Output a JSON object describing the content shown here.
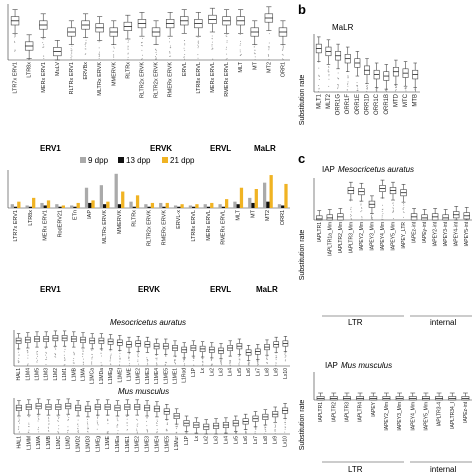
{
  "panels": {
    "b_letter": "b",
    "c_letter": "c",
    "b_title": "MaLR",
    "c_title_iap": "IAP",
    "c_species_top": "Mesocricetus auratus",
    "c_species_bottom": "Mus musculus",
    "c_title_iap2": "IAP",
    "a_species_top": "Mesocricetus auratus",
    "a_species_bottom": "Mus musculus",
    "ylabel_substitution": "Substitution rate"
  },
  "panel_a_top": {
    "group_labels": [
      "ERV1",
      "ERVK",
      "ERVL",
      "MaLR"
    ],
    "categories": [
      "LTR7x ERV1",
      "LTR8x",
      "MERx ERV1",
      "MuLV",
      "RLTRx ERV1",
      "ERVBx",
      "MLTRx ERVK",
      "MMERVK",
      "RLTRx",
      "RLTR2x ERVK",
      "RLTR2x ERVK",
      "RMERx ERVK",
      "ERVL",
      "LTR8x ERVL",
      "MERx ERVL",
      "RMERx ERVL",
      "MLT",
      "MT",
      "MT2",
      "ORR1"
    ]
  },
  "panel_a_bar": {
    "legend": [
      "9 dpp",
      "13 dpp",
      "21 dpp"
    ],
    "colors": {
      "9 dpp": "#aaaaaa",
      "13 dpp": "#111111",
      "21 dpp": "#f0b323"
    },
    "group_labels": [
      "ERV1",
      "ERVK",
      "ERVL",
      "MaLR"
    ],
    "categories": [
      "LTR7x ERV1",
      "LTR8x",
      "MERx ERV1",
      "RodERV21",
      "ETn",
      "IAP",
      "MLTRx ERVK",
      "MMERVK",
      "RLTRx",
      "RLTR2x ERVK",
      "RMERx ERVK",
      "ERVL-x",
      "LTR8x ERVL",
      "MERx ERVL",
      "RMERx ERVL",
      "MLT",
      "MT",
      "MT2",
      "ORR1"
    ]
  },
  "panel_a_l1_top": {
    "categories": [
      "HAL1",
      "L1M4",
      "L1M5",
      "L1M3",
      "L1M2",
      "L1M1",
      "L1MB",
      "L1MA",
      "L1MCa",
      "L1MDa",
      "L1MEg",
      "L1MEf",
      "L1ME",
      "L1ME2",
      "L1ME3",
      "L1ME4",
      "L1ME5",
      "L1ME1",
      "L1Rod",
      "L1P",
      "Lx",
      "Lx2",
      "Lx3",
      "Lx4",
      "Lx5",
      "Lx6",
      "Lx7",
      "Lx8",
      "Lx9",
      "Lx10"
    ]
  },
  "panel_a_l1_bottom": {
    "categories": [
      "HAL1",
      "L1MM",
      "L1MA",
      "L1MB",
      "L1MC",
      "L1MD",
      "L1MD2",
      "L1MD3",
      "L1MEg",
      "L1ME",
      "L1MEa",
      "L1ME1",
      "L1ME2",
      "L1ME3",
      "L1ME4",
      "L1ME5",
      "L1Mur",
      "L1P",
      "Lx",
      "Lx2",
      "Lx3",
      "Lx4",
      "Lx5",
      "Lx6",
      "Lx7",
      "Lx8",
      "Lx9",
      "Lx10"
    ]
  },
  "panel_b": {
    "categories": [
      "MLT1",
      "MLT2",
      "ORR1G",
      "ORR1F",
      "ORR1E",
      "ORR1D",
      "ORR1C",
      "ORR1B",
      "MTD",
      "MTC",
      "MTB"
    ]
  },
  "panel_c_top": {
    "categories": [
      "IAPLTR1",
      "IAPLTR1a_Mm",
      "IAPLTR2_Mm",
      "IAPLTR3_Mm",
      "IAPEY2_Mm",
      "IAPEY3_Mm",
      "IAPEY4_Mm",
      "IAPEY5_Mm",
      "IAPEY_LTR",
      "IAPEz-int",
      "IAPEy-int",
      "IAPEY2-int",
      "IAPEY3-int",
      "IAPEY4-int",
      "IAPEY5-int"
    ],
    "section_labels": [
      "LTR",
      "internal"
    ]
  },
  "panel_c_bottom": {
    "categories": [
      "IAPLTR1",
      "IAPLTR2",
      "IAPLTR3",
      "IAPLTR4",
      "IAPEY",
      "IAPEY2_Mm",
      "IAPEY3_Mm",
      "IAPEY4_Mm",
      "IAPEY5_Mm",
      "IAPLTR3-4",
      "IAPLTR34_I",
      "IAPEz-int"
    ],
    "section_labels": [
      "LTR",
      "internal"
    ]
  },
  "chart_data": [
    {
      "type": "box",
      "panel": "a-top",
      "ylim": [
        0,
        0.4
      ],
      "x": [
        "LTR7x ERV1",
        "LTR8x",
        "MERx ERV1",
        "MuLV",
        "RLTRx ERV1",
        "ERVBx",
        "MLTRx ERVK",
        "MMERVK",
        "RLTRx",
        "RLTR2x ERVK",
        "RLTR2x ERVK",
        "RMERx ERVK",
        "ERVL",
        "LTR8x ERVL",
        "MERx ERVL",
        "RMERx ERVL",
        "MLT",
        "MT",
        "MT2",
        "ORR1"
      ],
      "medians": [
        0.28,
        0.1,
        0.25,
        0.06,
        0.2,
        0.25,
        0.23,
        0.2,
        0.24,
        0.26,
        0.2,
        0.26,
        0.28,
        0.26,
        0.29,
        0.28,
        0.28,
        0.2,
        0.3,
        0.2
      ]
    },
    {
      "type": "bar",
      "panel": "a-bar",
      "x": [
        "LTR7x ERV1",
        "LTR8x",
        "MERx ERV1",
        "RodERV21",
        "ETn",
        "IAP",
        "MLTRx ERVK",
        "MMERVK",
        "RLTRx",
        "RLTR2x ERVK",
        "RMERx ERVK",
        "ERVL-x",
        "LTR8x ERVL",
        "MERx ERVL",
        "RMERx ERVL",
        "MLT",
        "MT",
        "MT2",
        "ORR1"
      ],
      "ylim": [
        0,
        3
      ],
      "series": [
        {
          "name": "9 dpp",
          "values": [
            0.3,
            0.2,
            0.4,
            0.3,
            0.2,
            1.6,
            1.8,
            2.7,
            0.5,
            0.3,
            0.4,
            0.2,
            0.2,
            0.3,
            0.3,
            0.5,
            0.8,
            2.0,
            0.3
          ]
        },
        {
          "name": "13 dpp",
          "values": [
            0.1,
            0.1,
            0.2,
            0.1,
            0.1,
            0.4,
            0.3,
            0.3,
            0.1,
            0.1,
            0.1,
            0.1,
            0.1,
            0.1,
            0.1,
            0.3,
            0.4,
            0.5,
            0.2
          ]
        },
        {
          "name": "21 dpp",
          "values": [
            0.5,
            0.8,
            0.6,
            0.2,
            0.4,
            0.6,
            0.5,
            1.3,
            1.0,
            0.4,
            0.4,
            0.3,
            0.3,
            0.4,
            0.7,
            1.6,
            1.5,
            2.6,
            1.9
          ]
        }
      ]
    },
    {
      "type": "box",
      "panel": "a-l1-top",
      "ylim": [
        0,
        0.4
      ],
      "medians": [
        0.28,
        0.29,
        0.3,
        0.3,
        0.31,
        0.31,
        0.3,
        0.29,
        0.28,
        0.28,
        0.27,
        0.26,
        0.24,
        0.25,
        0.24,
        0.22,
        0.22,
        0.2,
        0.18,
        0.2,
        0.19,
        0.18,
        0.17,
        0.2,
        0.22,
        0.15,
        0.16,
        0.21,
        0.24,
        0.25
      ]
    },
    {
      "type": "box",
      "panel": "a-l1-bottom",
      "ylim": [
        0,
        0.4
      ],
      "medians": [
        0.29,
        0.3,
        0.31,
        0.3,
        0.3,
        0.31,
        0.29,
        0.28,
        0.3,
        0.3,
        0.29,
        0.3,
        0.3,
        0.29,
        0.28,
        0.25,
        0.2,
        0.12,
        0.1,
        0.08,
        0.09,
        0.1,
        0.12,
        0.14,
        0.17,
        0.19,
        0.22,
        0.26
      ]
    },
    {
      "type": "box",
      "panel": "b",
      "ylim": [
        0,
        0.4
      ],
      "x": [
        "MLT1",
        "MLT2",
        "ORR1G",
        "ORR1F",
        "ORR1E",
        "ORR1D",
        "ORR1C",
        "ORR1B",
        "MTD",
        "MTC",
        "MTB"
      ],
      "medians": [
        0.3,
        0.28,
        0.25,
        0.23,
        0.2,
        0.15,
        0.12,
        0.11,
        0.14,
        0.13,
        0.12
      ]
    },
    {
      "type": "box",
      "panel": "c-top",
      "ylim": [
        0,
        0.4
      ],
      "medians": [
        0.01,
        0.02,
        0.03,
        0.28,
        0.27,
        0.15,
        0.3,
        0.28,
        0.26,
        0.03,
        0.02,
        0.03,
        0.02,
        0.05,
        0.04
      ]
    },
    {
      "type": "box",
      "panel": "c-bottom",
      "ylim": [
        0,
        0.4
      ],
      "medians": [
        0.02,
        0.02,
        0.02,
        0.02,
        0.02,
        0.02,
        0.02,
        0.02,
        0.02,
        0.02,
        0.02,
        0.02
      ]
    }
  ]
}
